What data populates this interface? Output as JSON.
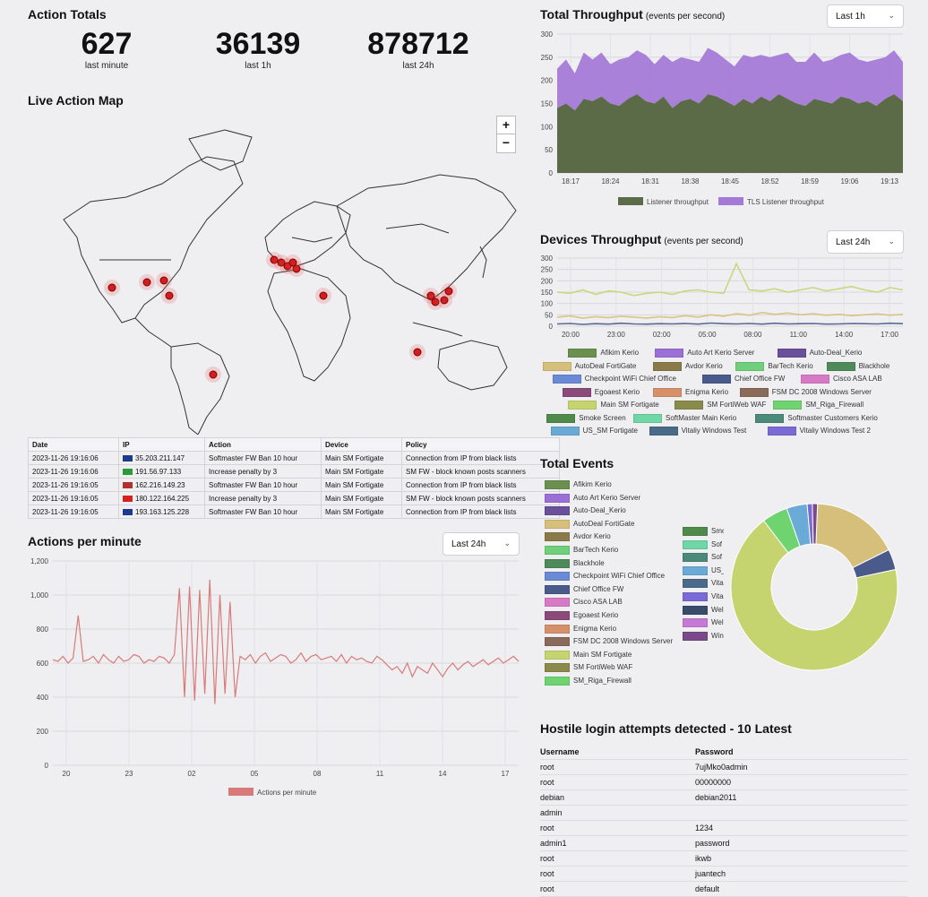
{
  "totals": {
    "title": "Action Totals",
    "items": [
      {
        "value": "627",
        "label": "last minute"
      },
      {
        "value": "36139",
        "label": "last 1h"
      },
      {
        "value": "878712",
        "label": "last 24h"
      }
    ]
  },
  "map": {
    "title": "Live Action Map",
    "zoom_in": "+",
    "zoom_out": "−"
  },
  "events_table": {
    "headers": [
      "Date",
      "IP",
      "Action",
      "Device",
      "Policy"
    ],
    "rows": [
      {
        "date": "2023-11-26 19:16:06",
        "flag": "uk",
        "ip": "35.203.211.147",
        "action": "Softmaster FW Ban 10 hour",
        "device": "Main SM Fortigate",
        "policy": "Connection from IP from black lists"
      },
      {
        "date": "2023-11-26 19:16:06",
        "flag": "br",
        "ip": "191.56.97.133",
        "action": "Increase penalty by 3",
        "device": "Main SM Fortigate",
        "policy": "SM FW - block known posts scanners"
      },
      {
        "date": "2023-11-26 19:16:05",
        "flag": "us",
        "ip": "162.216.149.23",
        "action": "Softmaster FW Ban 10 hour",
        "device": "Main SM Fortigate",
        "policy": "Connection from IP from black lists"
      },
      {
        "date": "2023-11-26 19:16:05",
        "flag": "cn",
        "ip": "180.122.164.225",
        "action": "Increase penalty by 3",
        "device": "Main SM Fortigate",
        "policy": "SM FW - block known posts scanners"
      },
      {
        "date": "2023-11-26 19:16:05",
        "flag": "uk",
        "ip": "193.163.125.228",
        "action": "Softmaster FW Ban 10 hour",
        "device": "Main SM Fortigate",
        "policy": "Connection from IP from black lists"
      }
    ]
  },
  "apm": {
    "title": "Actions per minute",
    "select": "Last 24h",
    "legend": "Actions per minute",
    "color": "#d97a7a"
  },
  "throughput": {
    "title": "Total Throughput",
    "subtitle": "(events per second)",
    "select": "Last 1h"
  },
  "devices": {
    "title": "Devices Throughput",
    "subtitle": "(events per second)",
    "select": "Last 24h"
  },
  "total_events": {
    "title": "Total Events",
    "legend_left": [
      {
        "name": "Afikim Kerio",
        "color": "#6b8f4e"
      },
      {
        "name": "Auto Art Kerio Server",
        "color": "#9b6fd6"
      },
      {
        "name": "Auto-Deal_Kerio",
        "color": "#6a4f9a"
      },
      {
        "name": "AutoDeal FortiGate",
        "color": "#d6bf7a"
      },
      {
        "name": "Avdor Kerio",
        "color": "#8a7a4a"
      },
      {
        "name": "BarTech Kerio",
        "color": "#6fcf7a"
      },
      {
        "name": "Blackhole",
        "color": "#4f8a5a"
      },
      {
        "name": "Checkpoint WiFi Chief Office",
        "color": "#6a8ad6"
      },
      {
        "name": "Chief Office FW",
        "color": "#4a5a8a"
      },
      {
        "name": "Cisco ASA LAB",
        "color": "#d67ac6"
      },
      {
        "name": "Egoaest Kerio",
        "color": "#8a4a7a"
      },
      {
        "name": "Enigma Kerio",
        "color": "#d6906a"
      },
      {
        "name": "FSM DC 2008 Windows Server",
        "color": "#8a6a5a"
      },
      {
        "name": "Main SM Fortigate",
        "color": "#c6d46f"
      },
      {
        "name": "SM FortiWeb WAF",
        "color": "#8a8a4a"
      },
      {
        "name": "SM_Riga_Firewall",
        "color": "#6fd46f"
      }
    ],
    "legend_right": [
      {
        "name": "Smo",
        "color": "#4f8a4a"
      },
      {
        "name": "Sof",
        "color": "#6fd6a6"
      },
      {
        "name": "Sof",
        "color": "#4a8a7a"
      },
      {
        "name": "US_",
        "color": "#6aaad6"
      },
      {
        "name": "Vita",
        "color": "#4a6a8a"
      },
      {
        "name": "Vita",
        "color": "#7a6ad6"
      },
      {
        "name": "Wel",
        "color": "#3a4a6a"
      },
      {
        "name": "Wel",
        "color": "#c67ad6"
      },
      {
        "name": "Win",
        "color": "#7a4a8a"
      }
    ]
  },
  "hostile": {
    "title": "Hostile login attempts detected - 10 Latest",
    "headers": [
      "Username",
      "Password"
    ],
    "rows": [
      [
        "root",
        "7ujMko0admin"
      ],
      [
        "root",
        "00000000"
      ],
      [
        "debian",
        "debian2011"
      ],
      [
        "admin",
        ""
      ],
      [
        "root",
        "1234"
      ],
      [
        "admin1",
        "password"
      ],
      [
        "root",
        "ikwb"
      ],
      [
        "root",
        "juantech"
      ],
      [
        "root",
        "default"
      ]
    ]
  },
  "chart_data": [
    {
      "type": "line",
      "title": "Actions per minute",
      "x_ticks": [
        "20",
        "23",
        "02",
        "05",
        "08",
        "11",
        "14",
        "17"
      ],
      "ylim": [
        0,
        1200
      ],
      "y_ticks": [
        "0",
        "200",
        "400",
        "600",
        "800",
        "1,000",
        "1,200"
      ],
      "series": [
        {
          "name": "Actions per minute",
          "color": "#d97a7a",
          "values": [
            620,
            610,
            640,
            600,
            630,
            880,
            610,
            620,
            640,
            600,
            650,
            620,
            600,
            640,
            610,
            620,
            650,
            640,
            600,
            620,
            610,
            640,
            630,
            600,
            650,
            1040,
            400,
            1050,
            380,
            1030,
            420,
            1090,
            360,
            1000,
            420,
            960,
            400,
            640,
            620,
            650,
            600,
            640,
            660,
            610,
            630,
            650,
            640,
            600,
            620,
            660,
            610,
            640,
            650,
            620,
            630,
            640,
            610,
            650,
            600,
            640,
            620,
            630,
            610,
            600,
            640,
            620,
            590,
            560,
            580,
            540,
            600,
            520,
            580,
            560,
            540,
            600,
            560,
            520,
            570,
            600,
            560,
            590,
            610,
            580,
            600,
            620,
            590,
            610,
            630,
            600,
            620,
            640,
            610
          ]
        }
      ],
      "grid": true
    },
    {
      "type": "area",
      "title": "Total Throughput",
      "x_ticks": [
        "18:17",
        "18:24",
        "18:31",
        "18:38",
        "18:45",
        "18:52",
        "18:59",
        "19:06",
        "19:13"
      ],
      "ylim": [
        0,
        300
      ],
      "y_ticks": [
        "0",
        "50",
        "100",
        "150",
        "200",
        "250",
        "300"
      ],
      "series": [
        {
          "name": "Listener throughput",
          "color": "#5b6b47",
          "values": [
            140,
            150,
            135,
            160,
            155,
            165,
            150,
            145,
            160,
            170,
            155,
            150,
            165,
            140,
            155,
            160,
            150,
            170,
            165,
            155,
            145,
            160,
            150,
            165,
            155,
            170,
            160,
            150,
            145,
            160,
            155,
            150,
            165,
            160,
            150,
            155,
            145,
            160,
            170,
            155
          ]
        },
        {
          "name": "TLS Listener throughput",
          "color": "#a47ad6",
          "values": [
            85,
            95,
            80,
            100,
            90,
            95,
            85,
            100,
            90,
            95,
            100,
            85,
            90,
            100,
            95,
            85,
            90,
            100,
            95,
            90,
            85,
            95,
            100,
            90,
            95,
            85,
            100,
            90,
            95,
            100,
            85,
            95,
            90,
            100,
            95,
            85,
            100,
            90,
            95,
            85
          ]
        }
      ],
      "grid": true
    },
    {
      "type": "line",
      "title": "Devices Throughput",
      "x_ticks": [
        "20:00",
        "23:00",
        "02:00",
        "05:00",
        "08:00",
        "11:00",
        "14:00",
        "17:00"
      ],
      "ylim": [
        0,
        300
      ],
      "y_ticks": [
        "0",
        "50",
        "100",
        "150",
        "200",
        "250",
        "300"
      ],
      "series": [
        {
          "name": "Afikim Kerio",
          "color": "#6b8f4e"
        },
        {
          "name": "Auto Art Kerio Server",
          "color": "#9b6fd6"
        },
        {
          "name": "Auto-Deal_Kerio",
          "color": "#6a4f9a"
        },
        {
          "name": "AutoDeal FortiGate",
          "color": "#d6bf7a",
          "values": [
            40,
            45,
            35,
            42,
            38,
            44,
            40,
            36,
            42,
            38,
            46,
            40,
            50,
            44,
            55,
            48,
            60,
            52,
            58,
            50,
            55,
            48,
            52,
            46,
            50,
            54,
            48,
            52
          ]
        },
        {
          "name": "Avdor Kerio",
          "color": "#8a7a4a"
        },
        {
          "name": "BarTech Kerio",
          "color": "#6fcf7a"
        },
        {
          "name": "Blackhole",
          "color": "#4f8a5a"
        },
        {
          "name": "Checkpoint WiFi Chief Office",
          "color": "#6a8ad6"
        },
        {
          "name": "Chief Office FW",
          "color": "#4a5a8a",
          "values": [
            10,
            12,
            8,
            11,
            9,
            13,
            10,
            9,
            11,
            10,
            12,
            9,
            14,
            11,
            10,
            12,
            9,
            13,
            10,
            11,
            12,
            9,
            10,
            12,
            11,
            10,
            13,
            11
          ]
        },
        {
          "name": "Cisco ASA LAB",
          "color": "#d67ac6"
        },
        {
          "name": "Egoaest Kerio",
          "color": "#8a4a7a"
        },
        {
          "name": "Enigma Kerio",
          "color": "#d6906a"
        },
        {
          "name": "FSM DC 2008 Windows Server",
          "color": "#8a6a5a"
        },
        {
          "name": "Main SM Fortigate",
          "color": "#c6d46f",
          "values": [
            150,
            145,
            160,
            140,
            155,
            150,
            135,
            145,
            150,
            140,
            155,
            160,
            150,
            145,
            275,
            160,
            155,
            165,
            150,
            160,
            170,
            155,
            165,
            175,
            160,
            150,
            170,
            160
          ]
        },
        {
          "name": "SM FortiWeb WAF",
          "color": "#8a8a4a"
        },
        {
          "name": "SM_Riga_Firewall",
          "color": "#6fd46f"
        },
        {
          "name": "Smoke Screen",
          "color": "#4f8a4a"
        },
        {
          "name": "SoftMaster Main Kerio",
          "color": "#6fd6a6"
        },
        {
          "name": "Softmaster Customers Kerio",
          "color": "#4a8a7a"
        },
        {
          "name": "US_SM Fortigate",
          "color": "#6aaad6"
        },
        {
          "name": "Vitaliy Windows Test",
          "color": "#4a6a8a"
        },
        {
          "name": "Vitaliy Windows Test 2",
          "color": "#7a6ad6"
        }
      ],
      "grid": true
    },
    {
      "type": "pie",
      "title": "Total Events",
      "slices": [
        {
          "name": "AutoDeal FortiGate",
          "value": 17,
          "color": "#d6bf7a"
        },
        {
          "name": "Chief Office FW",
          "value": 4,
          "color": "#4a5a8a"
        },
        {
          "name": "Main SM Fortigate",
          "value": 68,
          "color": "#c6d46f"
        },
        {
          "name": "SM_Riga_Firewall",
          "value": 5,
          "color": "#6fd46f"
        },
        {
          "name": "US_SM Fortigate",
          "value": 4,
          "color": "#6aaad6"
        },
        {
          "name": "Vitaliy Windows Test 2",
          "value": 1,
          "color": "#7a6ad6"
        },
        {
          "name": "Win",
          "value": 1,
          "color": "#7a4a8a"
        }
      ]
    }
  ]
}
